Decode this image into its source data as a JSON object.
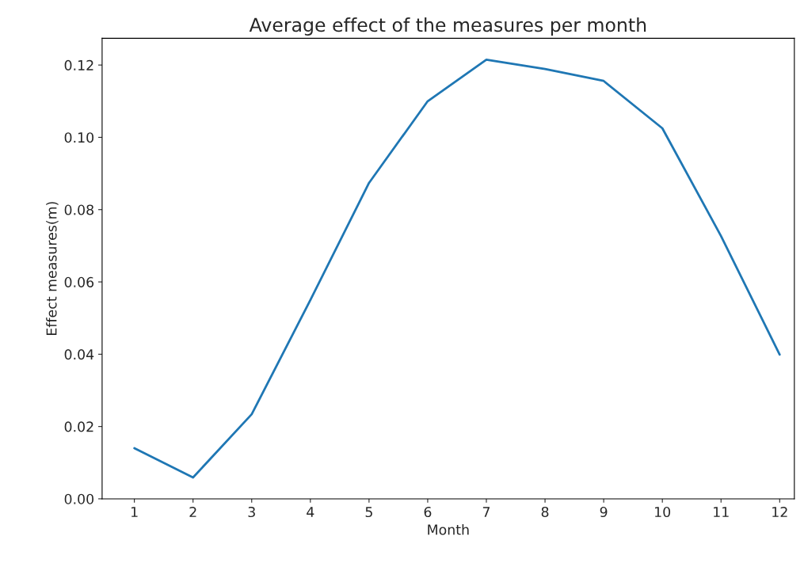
{
  "chart_data": {
    "type": "line",
    "title": "Average effect of the measures per month",
    "xlabel": "Month",
    "ylabel": "Effect measures(m)",
    "x": [
      1,
      2,
      3,
      4,
      5,
      6,
      7,
      8,
      9,
      10,
      11,
      12
    ],
    "series": [
      {
        "color": "#1f77b4",
        "values": [
          0.014,
          0.0059,
          0.0234,
          0.055,
          0.0874,
          0.11,
          0.1215,
          0.1189,
          0.1156,
          0.1025,
          0.0727,
          0.0399
        ]
      }
    ],
    "xlim": [
      0.45,
      12.25
    ],
    "xticks": [
      1,
      2,
      3,
      4,
      5,
      6,
      7,
      8,
      9,
      10,
      11,
      12
    ],
    "ylim": [
      0,
      0.1274
    ],
    "yticks": [
      {
        "value": 0,
        "label": "0.00"
      },
      {
        "value": 0.02,
        "label": "0.02"
      },
      {
        "value": 0.04,
        "label": "0.04"
      },
      {
        "value": 0.06,
        "label": "0.06"
      },
      {
        "value": 0.08,
        "label": "0.08"
      },
      {
        "value": 0.1,
        "label": "0.10"
      },
      {
        "value": 0.12,
        "label": "0.12"
      }
    ],
    "grid": false
  }
}
